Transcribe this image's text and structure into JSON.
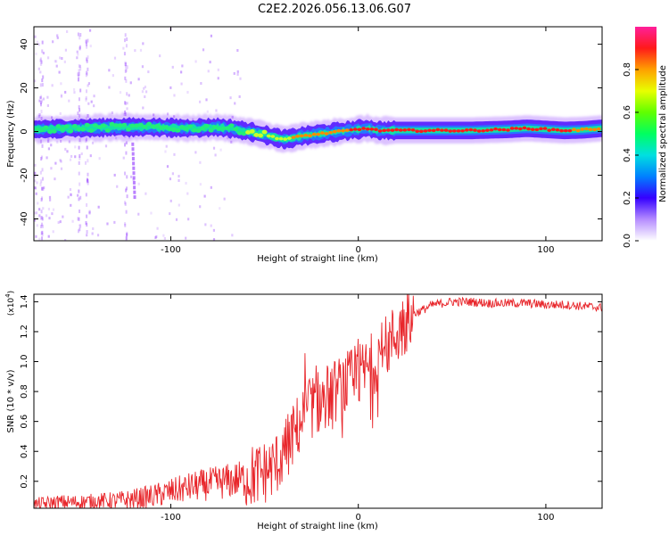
{
  "title": "C2E2.2026.056.13.06.G07",
  "colors": {
    "snr_line": "#e8262b",
    "ridge_high": "#ff1a1a",
    "ridge_mid": "#22ee77",
    "ridge_low": "#2a55ff",
    "halo": "#9c4cff"
  },
  "chart_data": [
    {
      "type": "heatmap",
      "title": "C2E2.2026.056.13.06.G07",
      "xlabel": "Height of straight line (km)",
      "ylabel": "Frequency (Hz)",
      "xlim": [
        -173,
        130
      ],
      "ylim": [
        -50,
        48
      ],
      "xticks": [
        -100,
        0,
        100
      ],
      "yticks": [
        -40,
        -20,
        0,
        20,
        40
      ],
      "ridge": {
        "x": [
          -173,
          -150,
          -130,
          -110,
          -90,
          -75,
          -65,
          -55,
          -45,
          -40,
          -35,
          -30,
          -25,
          -20,
          -15,
          -10,
          -5,
          0,
          5,
          10,
          20,
          40,
          60,
          80,
          90,
          100,
          110,
          120,
          130
        ],
        "y": [
          1,
          1.5,
          2,
          2,
          1.5,
          2,
          1,
          -0.5,
          -2.5,
          -3.5,
          -3,
          -2,
          -1.5,
          -1,
          -0.5,
          0,
          0.5,
          1,
          1.5,
          0.5,
          0.5,
          0.5,
          0.5,
          1,
          1.5,
          1,
          0.5,
          0.8,
          1.5
        ],
        "amplitude": [
          0.45,
          0.5,
          0.5,
          0.5,
          0.5,
          0.5,
          0.5,
          0.6,
          0.65,
          0.7,
          0.75,
          0.8,
          0.85,
          0.85,
          0.85,
          0.85,
          0.88,
          0.9,
          0.92,
          0.95,
          0.95,
          0.92,
          0.9,
          0.92,
          0.96,
          0.9,
          0.9,
          0.85,
          0.8
        ]
      },
      "colorbar": {
        "label": "Normalized spectral amplitude",
        "range": [
          0.0,
          1.0
        ],
        "ticks": [
          0.0,
          0.2,
          0.4,
          0.6,
          0.8
        ]
      }
    },
    {
      "type": "line",
      "xlabel": "Height of straight line (km)",
      "ylabel": "SNR (10 * v/v)",
      "y_scale_label": "(x10",
      "y_scale_exponent": "4",
      "xlim": [
        -173,
        130
      ],
      "ylim": [
        0.02,
        1.45
      ],
      "xticks": [
        -100,
        0,
        100
      ],
      "yticks": [
        0.2,
        0.4,
        0.6,
        0.8,
        1.0,
        1.2,
        1.4
      ],
      "series": [
        {
          "name": "SNR",
          "x": [
            -173,
            -160,
            -150,
            -140,
            -130,
            -120,
            -110,
            -100,
            -90,
            -80,
            -70,
            -60,
            -50,
            -45,
            -40,
            -35,
            -30,
            -25,
            -20,
            -15,
            -10,
            -5,
            0,
            5,
            10,
            15,
            20,
            25,
            30,
            40,
            50,
            60,
            70,
            80,
            90,
            100,
            110,
            120,
            130
          ],
          "y": [
            0.04,
            0.06,
            0.06,
            0.07,
            0.07,
            0.08,
            0.1,
            0.13,
            0.16,
            0.18,
            0.2,
            0.22,
            0.26,
            0.3,
            0.38,
            0.5,
            0.62,
            0.7,
            0.74,
            0.78,
            0.82,
            0.86,
            0.9,
            0.95,
            1.02,
            1.1,
            1.18,
            1.25,
            1.32,
            1.38,
            1.4,
            1.4,
            1.39,
            1.39,
            1.39,
            1.38,
            1.38,
            1.37,
            1.36
          ]
        }
      ]
    }
  ]
}
